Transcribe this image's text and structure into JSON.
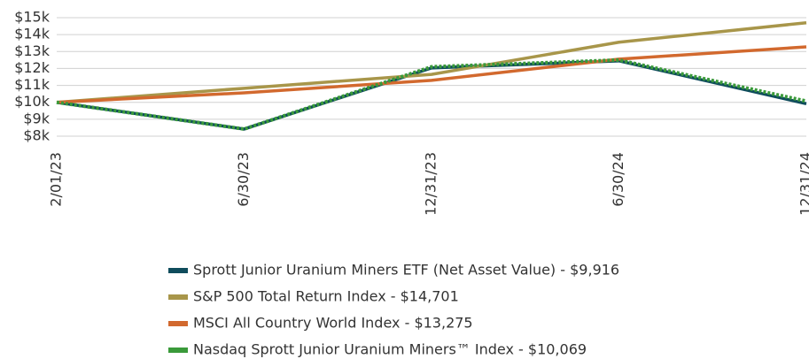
{
  "chart_data": {
    "type": "line",
    "categories": [
      "2/01/23",
      "6/30/23",
      "12/31/23",
      "6/30/24",
      "12/31/24"
    ],
    "series": [
      {
        "name": "Sprott Junior Uranium Miners ETF (Net Asset Value) - $9,916",
        "color": "#0f4c5c",
        "style": "solid",
        "values": [
          10000,
          8420,
          12030,
          12450,
          9916
        ]
      },
      {
        "name": "S&P 500 Total Return Index - $14,701",
        "color": "#a8964a",
        "style": "solid",
        "values": [
          10000,
          10830,
          11650,
          13550,
          14701
        ]
      },
      {
        "name": "MSCI All Country World Index - $13,275",
        "color": "#d2692e",
        "style": "solid",
        "values": [
          10000,
          10560,
          11300,
          12550,
          13275
        ]
      },
      {
        "name": "Nasdaq Sprott Junior Uranium Miners™ Index - $10,069",
        "color": "#3a9a3a",
        "style": "dotted",
        "values": [
          10000,
          8420,
          12100,
          12500,
          10069
        ]
      }
    ],
    "ylim": [
      8000,
      15000
    ],
    "yticks": [
      {
        "value": 8000,
        "label": "$8k"
      },
      {
        "value": 9000,
        "label": "$9k"
      },
      {
        "value": 10000,
        "label": "$10k"
      },
      {
        "value": 11000,
        "label": "$11k"
      },
      {
        "value": 12000,
        "label": "$12k"
      },
      {
        "value": 13000,
        "label": "$13k"
      },
      {
        "value": 14000,
        "label": "$14k"
      },
      {
        "value": 15000,
        "label": "$15k"
      }
    ],
    "grid": true
  }
}
